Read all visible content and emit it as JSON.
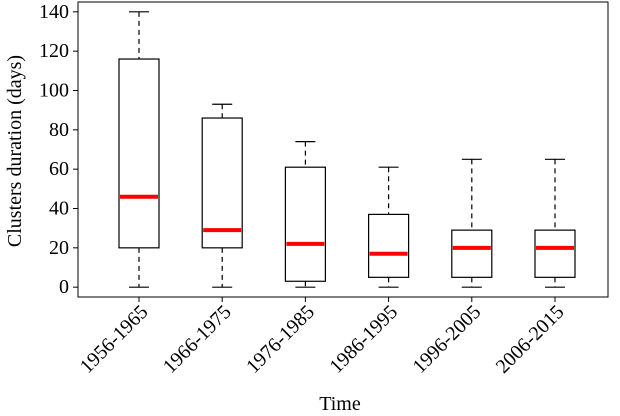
{
  "chart_data": {
    "type": "box",
    "title": "",
    "xlabel": "Time",
    "ylabel": "Clusters duration (days)",
    "ylim": [
      -5,
      145
    ],
    "yticks": [
      0,
      20,
      40,
      60,
      80,
      100,
      120,
      140
    ],
    "categories": [
      "1956-1965",
      "1966-1975",
      "1976-1985",
      "1986-1995",
      "1996-2005",
      "2006-2015"
    ],
    "boxes": [
      {
        "whisker_low": 0,
        "q1": 20,
        "median": 46,
        "q3": 116,
        "whisker_high": 140
      },
      {
        "whisker_low": 0,
        "q1": 20,
        "median": 29,
        "q3": 86,
        "whisker_high": 93
      },
      {
        "whisker_low": 0,
        "q1": 3,
        "median": 22,
        "q3": 61,
        "whisker_high": 74
      },
      {
        "whisker_low": 0,
        "q1": 5,
        "median": 17,
        "q3": 37,
        "whisker_high": 61
      },
      {
        "whisker_low": 0,
        "q1": 5,
        "median": 20,
        "q3": 29,
        "whisker_high": 65
      },
      {
        "whisker_low": 0,
        "q1": 5,
        "median": 20,
        "q3": 29,
        "whisker_high": 65
      }
    ],
    "colors": {
      "box": "#000000",
      "median": "#ff0000",
      "whisker": "#000000"
    }
  }
}
